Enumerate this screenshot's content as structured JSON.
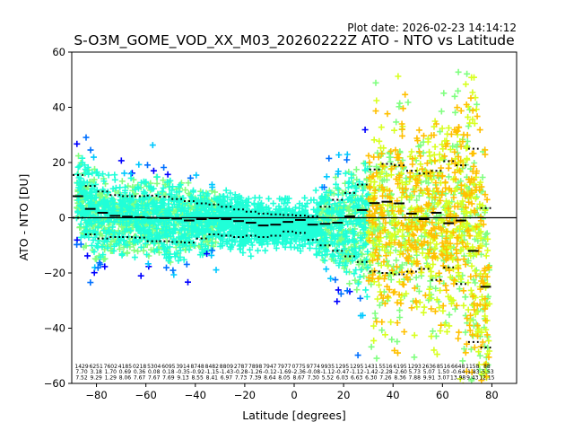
{
  "chart_data": {
    "type": "scatter",
    "plot_date": "Plot date: 2026-02-23 14:14:12",
    "title": "S-O3M_GOME_VOD_XX_M03_20260222Z ATO - NTO vs Latitude",
    "xlabel": "Latitude [degrees]",
    "ylabel": "ATO - NTO [DU]",
    "xlim": [
      -90,
      90
    ],
    "ylim": [
      -60,
      60
    ],
    "xticks": [
      -80,
      -60,
      -40,
      -20,
      0,
      20,
      40,
      60,
      80
    ],
    "yticks": [
      -60,
      -40,
      -20,
      0,
      20,
      40,
      60
    ],
    "xtick_labels": [
      "−80",
      "−60",
      "−40",
      "−20",
      "0",
      "20",
      "40",
      "60",
      "80"
    ],
    "ytick_labels": [
      "−60",
      "−40",
      "−20",
      "0",
      "20",
      "40",
      "60"
    ],
    "grid": false,
    "legend": "none",
    "marker": "+",
    "colormap": [
      "#0000ff",
      "#0070ff",
      "#00c8ff",
      "#20ffd8",
      "#80ff80",
      "#d8ff20",
      "#ffc000"
    ],
    "zero_line": 0,
    "bins": {
      "lat": [
        -87.5,
        -82.5,
        -77.5,
        -72.5,
        -67.5,
        -62.5,
        -57.5,
        -52.5,
        -47.5,
        -42.5,
        -37.5,
        -32.5,
        -27.5,
        -22.5,
        -17.5,
        -12.5,
        -7.5,
        -2.5,
        2.5,
        7.5,
        12.5,
        17.5,
        22.5,
        27.5,
        32.5,
        37.5,
        42.5,
        47.5,
        52.5,
        57.5,
        62.5,
        67.5,
        72.5,
        77.5
      ],
      "mean": [
        7.8,
        3.2,
        1.8,
        0.7,
        0.4,
        0.2,
        0.0,
        -0.1,
        -0.3,
        -1.0,
        -0.5,
        -0.2,
        -0.5,
        -1.2,
        -1.8,
        -2.8,
        -2.5,
        -1.5,
        -0.8,
        -2.5,
        -2.2,
        -1.8,
        0.5,
        2.8,
        5.3,
        5.8,
        5.2,
        1.5,
        -0.5,
        1.8,
        -2.0,
        -1.0,
        -12.0,
        -25.0
      ],
      "std_upper": [
        15.5,
        11.5,
        9.5,
        8.2,
        7.8,
        7.8,
        8.0,
        7.6,
        6.8,
        6.0,
        5.2,
        4.8,
        4.0,
        3.0,
        2.2,
        1.5,
        1.2,
        1.0,
        0.8,
        0.5,
        4.0,
        6.5,
        9.0,
        12.0,
        17.5,
        19.5,
        19.0,
        17.0,
        16.0,
        17.0,
        20.5,
        19.0,
        25.0,
        3.5
      ],
      "std_lower": [
        0.0,
        -6.0,
        -7.5,
        -7.0,
        -7.0,
        -7.2,
        -8.5,
        -8.5,
        -8.8,
        -9.0,
        -7.5,
        -6.0,
        -6.5,
        -7.0,
        -6.5,
        -7.0,
        -6.5,
        -5.0,
        -5.5,
        -8.0,
        -10.0,
        -12.0,
        -14.0,
        -16.0,
        -19.5,
        -20.0,
        -20.5,
        -19.5,
        -18.5,
        -22.5,
        -18.0,
        -24.0,
        -45.0,
        -47.0
      ]
    },
    "count_rows": {
      "counts": [
        "1429",
        "6251",
        "7602",
        "4185",
        "0218",
        "5304",
        "6095",
        "3914",
        "8748",
        "8482",
        "8809",
        "2787",
        "7898",
        "7947",
        "7977",
        "0775",
        "9774",
        "9935",
        "1295",
        "1295",
        "1431",
        "5516",
        "6195",
        "1293",
        "2636",
        "8516",
        "6648",
        "1158",
        "88"
      ],
      "means": [
        "7.70",
        "3.18",
        "1.70",
        "0.69",
        "0.36",
        "0.08",
        "0.18",
        "-0.35",
        "-0.92",
        "-1.15",
        "-1.43",
        "-0.28",
        "-1.26",
        "-0.12",
        "-1.69",
        "-2.36",
        "-0.08",
        "-1.12",
        "-0.47",
        "-1.12",
        "-1.42",
        "-2.28",
        "-2.60",
        "5.73",
        "5.07",
        "1.50",
        "-0.64",
        "-1.83",
        "-5.53"
      ],
      "stds": [
        "7.52",
        "9.29",
        "1.29",
        "8.06",
        "7.67",
        "7.67",
        "7.69",
        "9.13",
        "8.55",
        "8.41",
        "6.97",
        "7.73",
        "7.39",
        "8.64",
        "8.05",
        "8.67",
        "7.30",
        "5.52",
        "6.03",
        "6.63",
        "6.30",
        "7.26",
        "8.36",
        "7.88",
        "9.91",
        "3.07",
        "13.98",
        "9.43",
        "12.15"
      ]
    }
  }
}
